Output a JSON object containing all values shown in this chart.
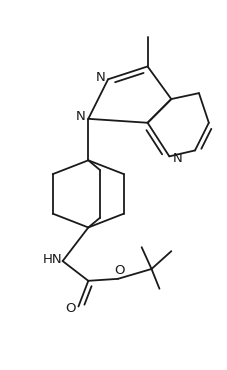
{
  "background_color": "#ffffff",
  "line_color": "#1a1a1a",
  "line_width": 1.3,
  "figsize": [
    2.28,
    3.7
  ],
  "dpi": 100,
  "xlim": [
    0,
    228
  ],
  "ylim": [
    0,
    370
  ]
}
